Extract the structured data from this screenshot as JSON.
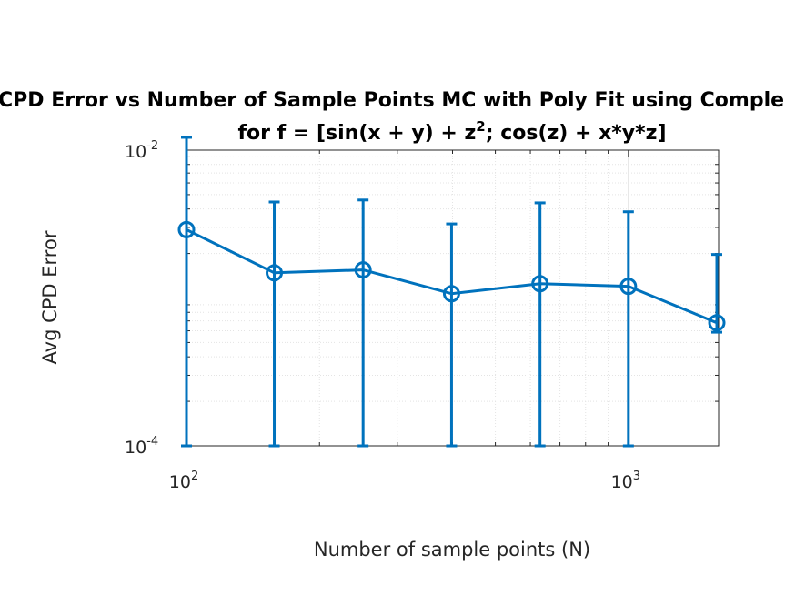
{
  "chart_data": {
    "type": "line",
    "title_line1": "CPD Error vs Number of Sample Points MC with Poly Fit using Comple",
    "title_line2": "for f = [sin(x + y) + z²; cos(z) + x*y*z]",
    "xlabel": "Number of sample points (N)",
    "ylabel": "Avg CPD Error",
    "xscale": "log",
    "yscale": "log",
    "xlim": [
      100,
      1600
    ],
    "ylim": [
      0.0001,
      0.01
    ],
    "grid": true,
    "x_tick_labels": [
      "10^2",
      "10^3"
    ],
    "y_tick_labels": [
      "10^-2",
      "10^-4"
    ],
    "series": [
      {
        "color": "#0072bd",
        "x": [
          100,
          158,
          251,
          398,
          631,
          1000,
          1585
        ],
        "y": [
          0.0029,
          0.00148,
          0.00155,
          0.00107,
          0.00125,
          0.0012,
          0.00068
        ],
        "err_upper": [
          0.0093,
          0.00298,
          0.00305,
          0.0021,
          0.00315,
          0.00263,
          0.00129
        ],
        "err_lower": [
          0.0029,
          0.00148,
          0.00155,
          0.00107,
          0.00125,
          0.0012,
          9.3e-05
        ]
      }
    ]
  }
}
